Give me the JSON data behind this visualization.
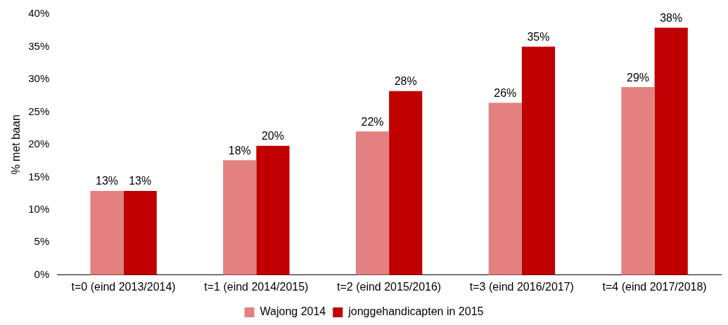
{
  "chart_data": {
    "type": "bar",
    "ylabel": "% met baan",
    "categories": [
      "t=0 (eind 2013/2014)",
      "t=1 (eind 2014/2015)",
      "t=2 (eind 2015/2016)",
      "t=3 (eind 2016/2017)",
      "t=4 (eind 2017/2018)"
    ],
    "series": [
      {
        "name": "Wajong 2014",
        "color": "#e38080",
        "values": [
          12.9,
          17.6,
          22.0,
          26.4,
          28.8
        ],
        "value_labels": [
          "13%",
          "18%",
          "22%",
          "26%",
          "29%"
        ]
      },
      {
        "name": "jonggehandicapten in 2015",
        "color": "#c00000",
        "values": [
          12.9,
          19.8,
          28.2,
          35.0,
          37.9
        ],
        "value_labels": [
          "13%",
          "20%",
          "28%",
          "35%",
          "38%"
        ]
      }
    ],
    "ylim": [
      0,
      40
    ],
    "yticks": [
      {
        "value": 0,
        "label": "0%"
      },
      {
        "value": 5,
        "label": "5%"
      },
      {
        "value": 10,
        "label": "10%"
      },
      {
        "value": 15,
        "label": "15%"
      },
      {
        "value": 20,
        "label": "20%"
      },
      {
        "value": 25,
        "label": "25%"
      },
      {
        "value": 30,
        "label": "30%"
      },
      {
        "value": 35,
        "label": "35%"
      },
      {
        "value": 40,
        "label": "40%"
      }
    ],
    "grid": false,
    "legend": "bottom"
  }
}
